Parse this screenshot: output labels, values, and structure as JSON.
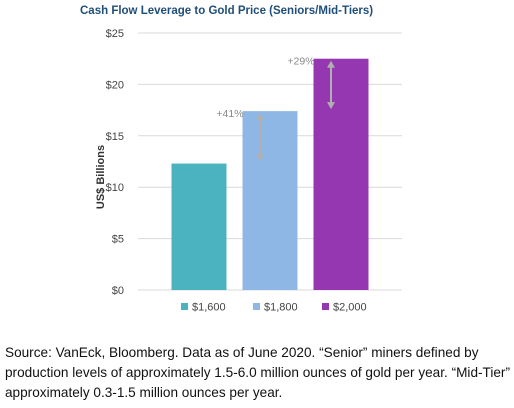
{
  "chart_data": {
    "type": "bar",
    "title": "Cash Flow Leverage to Gold Price (Seniors/Mid-Tiers)",
    "ylabel": "US$ Billions",
    "xlabel": "",
    "ylim": [
      0,
      25
    ],
    "yticks": [
      0,
      5,
      10,
      15,
      20,
      25
    ],
    "ytick_labels": [
      "$0",
      "$5",
      "$10",
      "$15",
      "$20",
      "$25"
    ],
    "categories": [
      "$1,600",
      "$1,800",
      "$2,000"
    ],
    "values": [
      12.3,
      17.4,
      22.5
    ],
    "colors": [
      "#4bb3bf",
      "#8fb7e6",
      "#9537b0"
    ],
    "grid": true,
    "legend_position": "bottom",
    "annotations": [
      {
        "text": "+41%",
        "from_category": 0,
        "to_category": 1
      },
      {
        "text": "+29%",
        "from_category": 1,
        "to_category": 2
      }
    ]
  },
  "caption": "Source: VanEck, Bloomberg. Data as of June 2020. “Senior” miners defined by production levels of approximately 1.5-6.0 million ounces of gold per year. “Mid-Tier” approximately 0.3-1.5 million ounces per year."
}
